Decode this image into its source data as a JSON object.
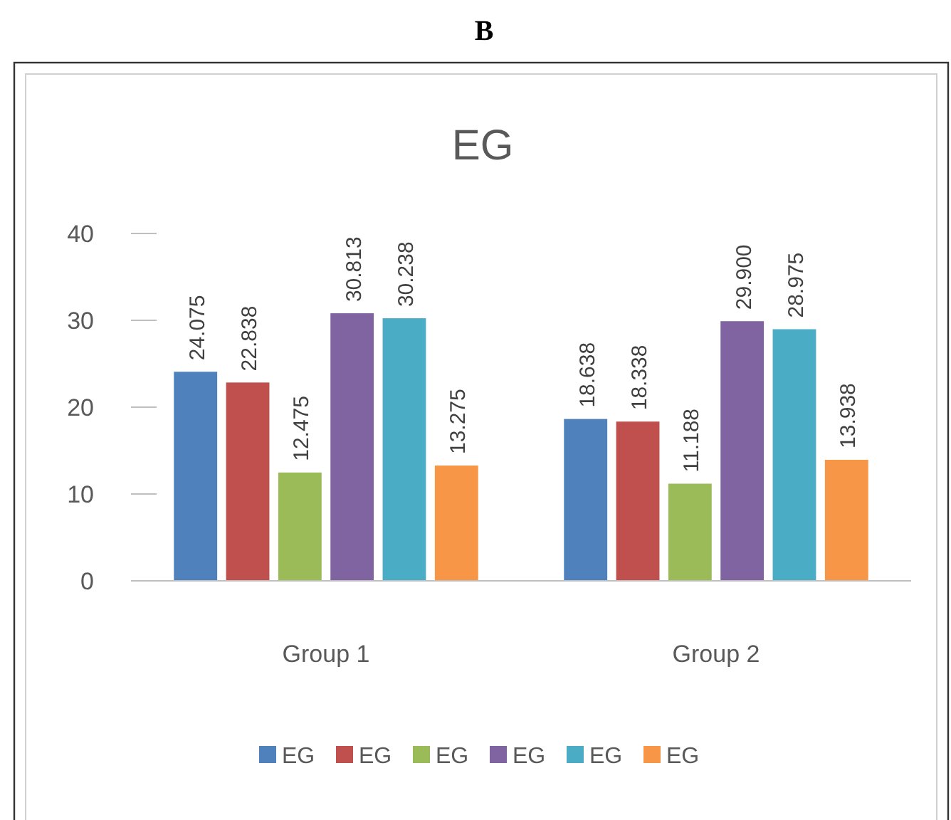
{
  "chart_data": {
    "type": "bar",
    "title": "EG",
    "annotations": [
      "B"
    ],
    "categories": [
      "Group 1",
      "Group 2"
    ],
    "series": [
      {
        "name": "EG",
        "color": "#4f81bd",
        "values": [
          24.075,
          18.638
        ],
        "value_labels": [
          "24.075",
          "18.638"
        ]
      },
      {
        "name": "EG",
        "color": "#c0504d",
        "values": [
          22.838,
          18.338
        ],
        "value_labels": [
          "22.838",
          "18.338"
        ]
      },
      {
        "name": "EG",
        "color": "#9bbb59",
        "values": [
          12.475,
          11.188
        ],
        "value_labels": [
          "12.475",
          "11.188"
        ]
      },
      {
        "name": "EG",
        "color": "#8064a2",
        "values": [
          30.813,
          29.9
        ],
        "value_labels": [
          "30.813",
          "29.900"
        ]
      },
      {
        "name": "EG",
        "color": "#4bacc6",
        "values": [
          30.238,
          28.975
        ],
        "value_labels": [
          "30.238",
          "28.975"
        ]
      },
      {
        "name": "EG",
        "color": "#f79646",
        "values": [
          13.275,
          13.938
        ],
        "value_labels": [
          "13.275",
          "13.938"
        ]
      }
    ],
    "ylim": [
      0,
      40
    ],
    "yticks": [
      0,
      10,
      20,
      30,
      40
    ],
    "grid": false,
    "legend": "bottom"
  }
}
